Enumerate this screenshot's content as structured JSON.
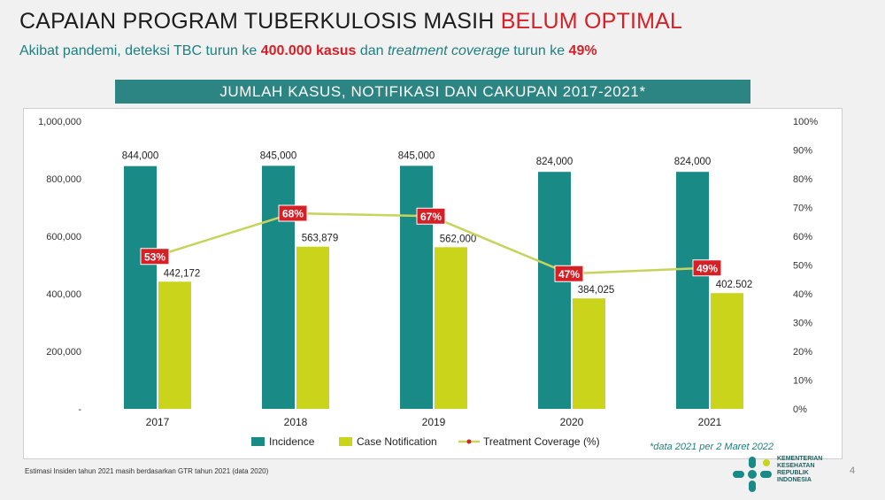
{
  "slide": {
    "title_main": "CAPAIAN PROGRAM TUBERKULOSIS MASIH ",
    "title_highlight": "BELUM OPTIMAL",
    "subtitle": {
      "part1": "Akibat pandemi, deteksi TBC turun ke ",
      "cases": "400.000 kasus",
      "part2": " dan ",
      "term": "treatment coverage",
      "part3": " turun ke ",
      "percent": "49%"
    },
    "banner": "JUMLAH KASUS, NOTIFIKASI DAN CAKUPAN 2017-2021*",
    "footnote": "Estimasi Insiden tahun 2021 masih berdasarkan GTR tahun 2021 (data 2020)",
    "page_number": "4",
    "logo_lines": [
      "KEMENTERIAN",
      "KESEHATAN",
      "REPUBLIK",
      "INDONESIA"
    ]
  },
  "colors": {
    "incidence": "#1a8a87",
    "notification": "#c9d41b",
    "coverage_line": "#c7d35a",
    "coverage_label_bg": "#d71f26",
    "accent_red": "#d71f26",
    "teal_text": "#1f7f80"
  },
  "chart_data": {
    "type": "bar",
    "categories": [
      "2017",
      "2018",
      "2019",
      "2020",
      "2021"
    ],
    "series": [
      {
        "name": "Incidence",
        "values": [
          844000,
          845000,
          845000,
          824000,
          824000
        ],
        "labels": [
          "844,000",
          "845,000",
          "845,000",
          "824,000",
          "824,000"
        ]
      },
      {
        "name": "Case Notification",
        "values": [
          442172,
          563879,
          562000,
          384025,
          402502
        ],
        "labels": [
          "442,172",
          "563,879",
          "562,000",
          "384,025",
          "402.502"
        ]
      },
      {
        "name": "Treatment Coverage (%)",
        "type": "line",
        "axis": "right",
        "values": [
          53,
          68,
          67,
          47,
          49
        ],
        "labels": [
          "53%",
          "68%",
          "67%",
          "47%",
          "49%"
        ]
      }
    ],
    "ylim_left": [
      0,
      1000000
    ],
    "ylim_right": [
      0,
      100
    ],
    "yticks_left": [
      "-",
      "200,000",
      "400,000",
      "600,000",
      "800,000",
      "1,000,000"
    ],
    "yticks_right": [
      "0%",
      "10%",
      "20%",
      "30%",
      "40%",
      "50%",
      "60%",
      "70%",
      "80%",
      "90%",
      "100%"
    ],
    "legend_position": "bottom",
    "grid": false,
    "note": "*data 2021 per 2 Maret 2022"
  }
}
